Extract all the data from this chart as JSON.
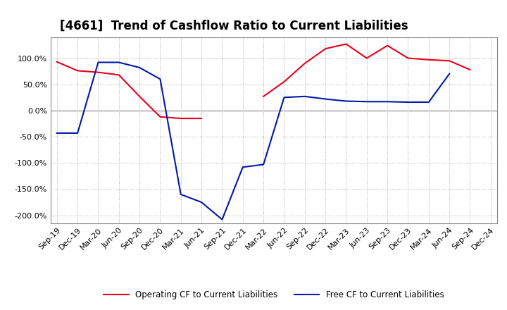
{
  "title": "[4661]  Trend of Cashflow Ratio to Current Liabilities",
  "x_labels": [
    "Sep-19",
    "Dec-19",
    "Mar-20",
    "Jun-20",
    "Sep-20",
    "Dec-20",
    "Mar-21",
    "Jun-21",
    "Sep-21",
    "Dec-21",
    "Mar-22",
    "Jun-22",
    "Sep-22",
    "Dec-22",
    "Mar-23",
    "Jun-23",
    "Sep-23",
    "Dec-23",
    "Mar-24",
    "Jun-24",
    "Sep-24",
    "Dec-24"
  ],
  "operating_cf": [
    93,
    76,
    73,
    68,
    27,
    -12,
    -15,
    -15,
    null,
    null,
    27,
    55,
    90,
    118,
    127,
    100,
    124,
    100,
    97,
    95,
    78,
    null
  ],
  "free_cf": [
    -43,
    -43,
    92,
    92,
    82,
    60,
    -160,
    -175,
    -208,
    -108,
    -103,
    25,
    27,
    22,
    18,
    17,
    17,
    16,
    16,
    70,
    null,
    null
  ],
  "ylim": [
    -215,
    140
  ],
  "yticks": [
    -200,
    -150,
    -100,
    -50,
    0,
    50,
    100
  ],
  "operating_color": "#e8001c",
  "free_color": "#0018a8",
  "legend_operating": "Operating CF to Current Liabilities",
  "legend_free": "Free CF to Current Liabilities",
  "background_color": "#ffffff",
  "grid_color": "#aaaaaa",
  "title_fontsize": 12,
  "axis_fontsize": 8
}
